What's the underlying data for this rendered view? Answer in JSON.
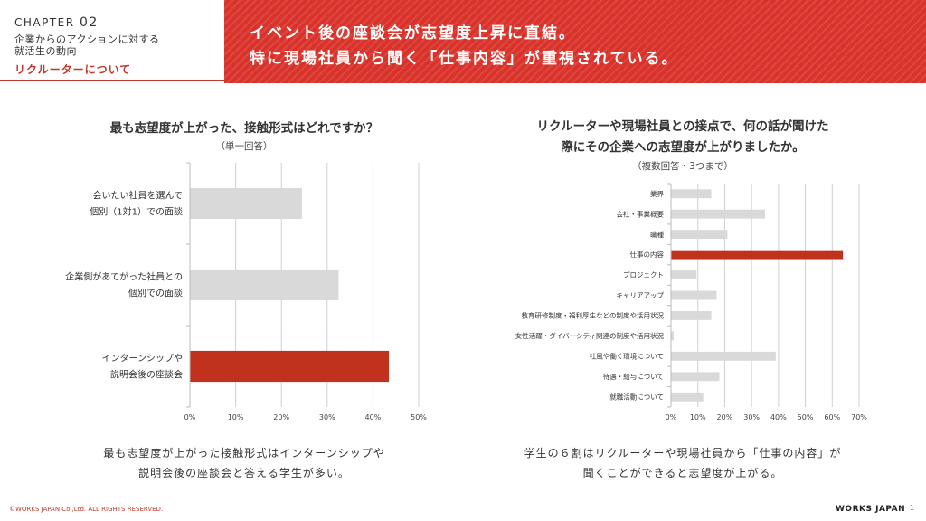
{
  "header": {
    "chapter_word": "CHAPTER",
    "chapter_num": "02",
    "subtitle_line1": "企業からのアクションに対する",
    "subtitle_line2": "就活生の動向",
    "section": "リクルーターについて",
    "banner_line1": "イベント後の座談会が志望度上昇に直結。",
    "banner_line2": "特に現場社員から聞く「仕事内容」が重視されている。",
    "accent_color": "#c0392b",
    "banner_color": "#d8322a"
  },
  "left": {
    "title": "最も志望度が上がった、接触形式はどれですか？",
    "note": "（単一回答）",
    "summary_line1": "最も志望度が上がった接触形式はインターンシップや",
    "summary_line2": "説明会後の座談会と答える学生が多い。"
  },
  "right": {
    "title_line1": "リクルーターや現場社員との接点で、何の話が聞けた",
    "title_line2": "際にその企業への志望度が上がりましたか。",
    "note": "（複数回答・3つまで）",
    "summary_line1": "学生の６割はリクルーターや現場社員から「仕事の内容」が",
    "summary_line2": "聞くことができると志望度が上がる。"
  },
  "chart_data": [
    {
      "type": "bar",
      "orientation": "horizontal",
      "categories": [
        [
          "会いたい社員を選んで",
          "個別（1対1）での面談"
        ],
        [
          "企業側があてがった社員との",
          "個別での面談"
        ],
        [
          "インターンシップや",
          "説明会後の座談会"
        ]
      ],
      "values": [
        24.5,
        32.5,
        43.5
      ],
      "highlight_index": 2,
      "xlim": [
        0,
        50
      ],
      "xticks": [
        "0%",
        "10%",
        "20%",
        "30%",
        "40%",
        "50%"
      ],
      "grid": true,
      "bar_color": "#d9d9d9",
      "highlight_color": "#c0321e"
    },
    {
      "type": "bar",
      "orientation": "horizontal",
      "categories": [
        "業界",
        "会社・事業概要",
        "職種",
        "仕事の内容",
        "プロジェクト",
        "キャリアアップ",
        "教育研修制度・福利厚生などの制度や活用状況",
        "女性活躍・ダイバーシティ関連の制度や活用状況",
        "社風や働く環境について",
        "待遇・給与について",
        "就職活動について"
      ],
      "values": [
        15,
        35,
        21,
        64,
        9.5,
        17,
        15,
        1,
        39,
        18,
        12
      ],
      "highlight_index": 3,
      "xlim": [
        0,
        70
      ],
      "xticks": [
        "0%",
        "10%",
        "20%",
        "30%",
        "40%",
        "50%",
        "60%",
        "70%"
      ],
      "grid": true,
      "bar_color": "#d9d9d9",
      "highlight_color": "#c0321e"
    }
  ],
  "footer": {
    "copyright": "©WORKS JAPAN Co.,Ltd. ALL RIGHTS RESERVED.",
    "logo": "WORKS JAPAN",
    "page": "1"
  }
}
